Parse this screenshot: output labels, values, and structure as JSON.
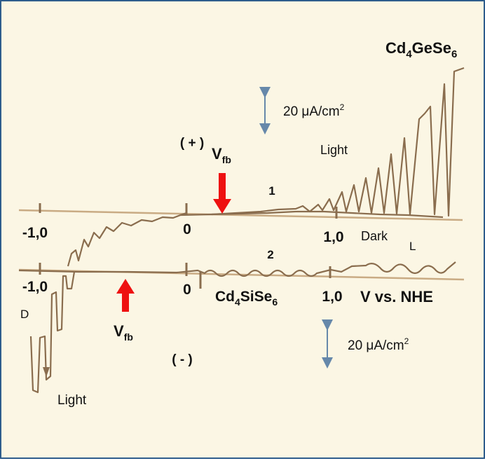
{
  "chart_data": {
    "type": "line",
    "xlabel": "V vs. NHE",
    "x_ticks": [
      {
        "value": -1.0,
        "label": "-1,0"
      },
      {
        "value": 0,
        "label": "0"
      },
      {
        "value": 1.0,
        "label": "1,0"
      }
    ],
    "panels": [
      {
        "id": "1",
        "compound": {
          "base": "Cd",
          "sub1": "4",
          "mid": "GeSe",
          "sub2": "6"
        },
        "sign": "( + )",
        "vfb": {
          "base": "V",
          "sub": "fb",
          "x": 0.35
        },
        "scale": {
          "value": "20 μA/cm",
          "sup": "2"
        },
        "labels": {
          "light": "Light",
          "dark": "Dark",
          "l": "L"
        },
        "x": [
          -1.0,
          -0.5,
          0.0,
          0.35,
          0.6,
          0.8,
          1.0,
          1.2,
          1.4,
          1.55
        ],
        "light_rel_current": [
          0,
          0,
          0,
          0.01,
          0.05,
          0.12,
          0.25,
          0.45,
          0.72,
          1.0
        ],
        "dark_rel_current": [
          0,
          0,
          0,
          0,
          0,
          0,
          0.01,
          0.02,
          0.02,
          0.02
        ]
      },
      {
        "id": "2",
        "compound": {
          "base": "Cd",
          "sub1": "4",
          "mid": "SiSe",
          "sub2": "6"
        },
        "sign": "( - )",
        "vfb": {
          "base": "V",
          "sub": "fb",
          "x": -0.45
        },
        "scale": {
          "value": "20 μA/cm",
          "sup": "2"
        },
        "labels": {
          "light": "Light",
          "dark": "D"
        },
        "x": [
          -1.2,
          -1.1,
          -1.0,
          -0.9,
          -0.8,
          -0.6,
          -0.45,
          0.0,
          0.5,
          1.0,
          1.5
        ],
        "light_rel_current": [
          -1.0,
          -0.75,
          -0.45,
          -0.2,
          -0.08,
          -0.02,
          0,
          0,
          0.01,
          0.01,
          0.01
        ],
        "dark_rel_current": [
          0,
          0,
          0,
          0,
          0,
          0,
          0,
          0,
          0,
          0,
          0
        ]
      }
    ],
    "colors": {
      "trace": "#8a6d4e",
      "baseline": "#c9ab84",
      "arrow": "#ee1111",
      "scale_arrow": "#6688aa",
      "frame": "#2e5d8c",
      "background": "#fbf6e4"
    }
  }
}
